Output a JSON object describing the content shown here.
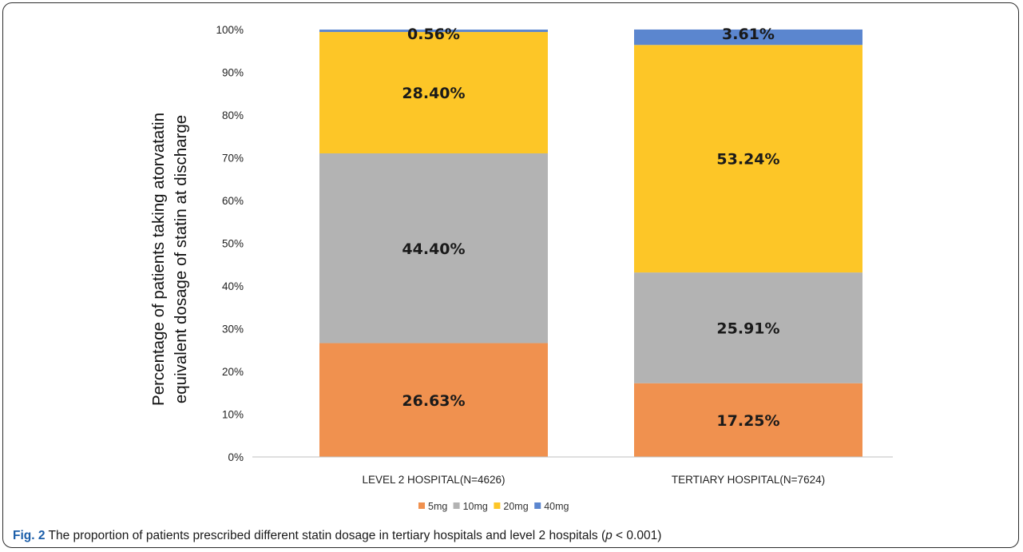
{
  "chart_data": {
    "type": "bar",
    "stacked": true,
    "categories": [
      "LEVEL 2 HOSPITAL(N=4626)",
      "TERTIARY HOSPITAL(N=7624)"
    ],
    "series": [
      {
        "name": "5mg",
        "values": [
          26.63,
          17.25
        ],
        "labels": [
          "26.63%",
          "17.25%"
        ],
        "color": "#f0914f"
      },
      {
        "name": "10mg",
        "values": [
          44.4,
          25.91
        ],
        "labels": [
          "44.40%",
          "25.91%"
        ],
        "color": "#b3b3b3"
      },
      {
        "name": "20mg",
        "values": [
          28.4,
          53.24
        ],
        "labels": [
          "28.40%",
          "53.24%"
        ],
        "color": "#fdc627"
      },
      {
        "name": "40mg",
        "values": [
          0.56,
          3.61
        ],
        "labels": [
          "0.56%",
          "3.61%"
        ],
        "color": "#5b86cf"
      }
    ],
    "ylabel_line1": "Percentage of patients taking atorvatatin",
    "ylabel_line2": "equivalent dosage of statin at discharge",
    "ylim": [
      0,
      100
    ],
    "yticks": [
      "0%",
      "10%",
      "20%",
      "30%",
      "40%",
      "50%",
      "60%",
      "70%",
      "80%",
      "90%",
      "100%"
    ],
    "legend_position": "bottom",
    "grid": false
  },
  "caption": {
    "label": "Fig. 2",
    "text_before": " The proportion of patients prescribed different statin dosage in tertiary hospitals and level 2 hospitals (",
    "italic": "p",
    "text_after": " < 0.001)"
  }
}
